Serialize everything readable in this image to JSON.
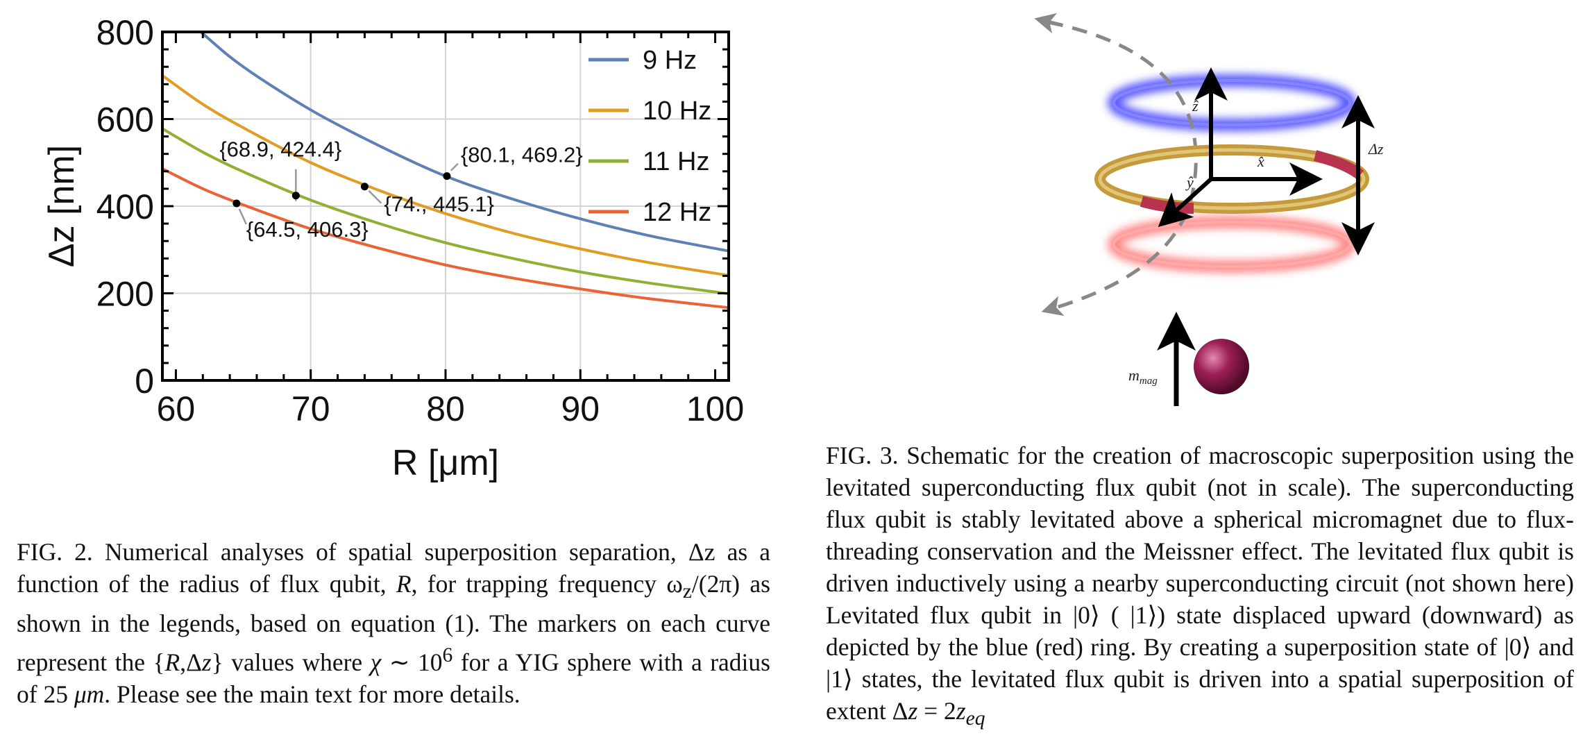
{
  "chart_data": {
    "type": "line",
    "xlabel": "R [μm]",
    "ylabel": "Δz [nm]",
    "xlim": [
      59,
      101
    ],
    "ylim": [
      0,
      800
    ],
    "xticks": [
      60,
      70,
      80,
      90,
      100
    ],
    "yticks": [
      0,
      200,
      400,
      600,
      800
    ],
    "grid": true,
    "legend_placement": "top-right",
    "series": [
      {
        "name": "9 Hz",
        "color": "#5e81b5",
        "x": [
          59,
          62,
          65,
          70,
          75,
          80,
          85,
          90,
          95,
          101
        ],
        "y": [
          880,
          796,
          720,
          621,
          540,
          469,
          416,
          371,
          333,
          297
        ]
      },
      {
        "name": "10 Hz",
        "color": "#e19c24",
        "x": [
          59,
          62,
          65,
          70,
          75,
          80,
          85,
          90,
          95,
          101
        ],
        "y": [
          700,
          634,
          580,
          500,
          437,
          383,
          338,
          302,
          271,
          241
        ]
      },
      {
        "name": "11 Hz",
        "color": "#8fb032",
        "x": [
          59,
          62,
          65,
          70,
          75,
          80,
          85,
          90,
          95,
          101
        ],
        "y": [
          578,
          524,
          479,
          414,
          361,
          316,
          280,
          249,
          224,
          199
        ]
      },
      {
        "name": "12 Hz",
        "color": "#eb6235",
        "x": [
          59,
          62,
          65,
          70,
          75,
          80,
          85,
          90,
          95,
          101
        ],
        "y": [
          486,
          440,
          403,
          348,
          304,
          265,
          235,
          210,
          188,
          167
        ]
      }
    ],
    "markers": [
      {
        "x": 80.1,
        "y": 469.2,
        "label": "{80.1, 469.2}"
      },
      {
        "x": 74.0,
        "y": 445.1,
        "label": "{74., 445.1}"
      },
      {
        "x": 68.9,
        "y": 424.4,
        "label": "{68.9, 424.4}"
      },
      {
        "x": 64.5,
        "y": 406.3,
        "label": "{64.5, 406.3}"
      }
    ]
  },
  "schematic": {
    "label_z": "ẑ",
    "label_x": "x̂",
    "label_y": "ŷ",
    "label_dz": "Δz",
    "label_mmag": "m",
    "label_mmag_sub": "mag",
    "color_blue_ring": "#3b3bff",
    "color_red_ring": "#ff6b6b",
    "color_gold_ring": "#c49a3a",
    "color_magnet": "#8e1a4a"
  },
  "captions": {
    "fig2": {
      "p1": "FIG. 2.  Numerical analyses of spatial superposition separation, Δz as a function of the radius of flux qubit, ",
      "p2": "R",
      "p3": ", for trapping frequency ω",
      "p4": "z",
      "p5": "/(2π) as shown in the legends, based on equation (1). The markers on each curve represent the {",
      "p6": "R",
      "p7": ",Δ",
      "p8": "z",
      "p9": "} values where ",
      "p10": "χ",
      "p11": " ∼ 10",
      "p12": "6",
      "p13": " for a YIG sphere with a radius of 25 ",
      "p14": "μm",
      "p15": ".  Please see the main text for more details."
    },
    "fig3": {
      "p1": "FIG. 3. Schematic for the creation of macroscopic superposition using the levitated superconducting flux qubit (not in scale).  The superconducting flux qubit is stably levitated above a spherical micromagnet due to flux-threading conservation and the Meissner effect. The levitated flux qubit is driven inductively using a nearby superconducting circuit (not shown here) Levitated flux qubit in |0⟩ ( |1⟩) state displaced upward (downward) as depicted by the blue (red) ring. By creating a superposition state of |0⟩ and |1⟩ states, the levitated flux qubit is driven into a spatial superposition of extent Δ",
      "p2": "z",
      "p3": " = 2",
      "p4": "z",
      "p5": "eq"
    }
  }
}
